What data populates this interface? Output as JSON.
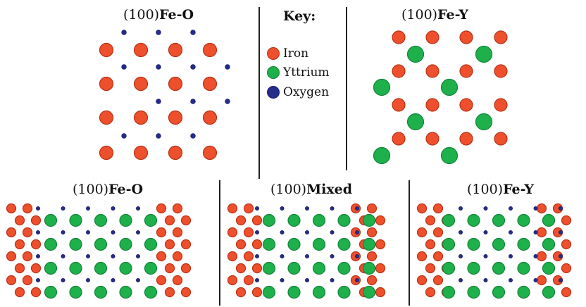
{
  "panels": {
    "top_left": {
      "title_prefix": "(100)",
      "title_suffix": "Fe-O"
    },
    "top_right": {
      "title_prefix": "(100)",
      "title_suffix": "Fe-Y"
    },
    "bottom_left": {
      "title_prefix": "(100)",
      "title_suffix": "Fe-O"
    },
    "bottom_middle": {
      "title_prefix": "(100)",
      "title_suffix": "Mixed"
    },
    "bottom_right": {
      "title_prefix": "(100)",
      "title_suffix": "Fe-Y"
    }
  },
  "legend": {
    "title": "Key:",
    "items": [
      {
        "label": "Iron",
        "color": "#ee4f2c"
      },
      {
        "label": "Yttrium",
        "color": "#1eb04a"
      },
      {
        "label": "Oxygen",
        "color": "#262c8a"
      }
    ]
  },
  "colors": {
    "iron": "#ee4f2c",
    "iron_stroke": "#b93214",
    "yttrium": "#1eb04a",
    "yttrium_stroke": "#12853a",
    "oxygen": "#262c8a",
    "oxygen_stroke": "#1a1f6a"
  }
}
